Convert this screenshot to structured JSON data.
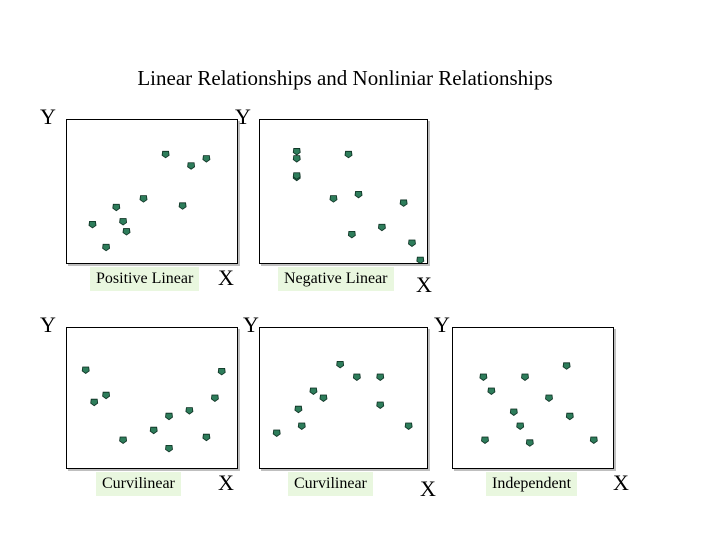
{
  "title": "Linear Relationships and Nonliniar Relationships",
  "point_color": "#2e7d5b",
  "label_bg": "#e9f7df",
  "panels": [
    {
      "label": "Positive Linear",
      "y_axis_label": "Y",
      "x_axis_label": "X",
      "points": [
        [
          0.15,
          0.27
        ],
        [
          0.23,
          0.11
        ],
        [
          0.29,
          0.39
        ],
        [
          0.33,
          0.29
        ],
        [
          0.35,
          0.22
        ],
        [
          0.45,
          0.45
        ],
        [
          0.58,
          0.76
        ],
        [
          0.68,
          0.4
        ],
        [
          0.73,
          0.68
        ],
        [
          0.82,
          0.73
        ]
      ]
    },
    {
      "label": "Negative Linear",
      "y_axis_label": "Y",
      "x_axis_label": "X",
      "points": [
        [
          0.22,
          0.6
        ],
        [
          0.22,
          0.61
        ],
        [
          0.22,
          0.73
        ],
        [
          0.22,
          0.78
        ],
        [
          0.44,
          0.45
        ],
        [
          0.53,
          0.76
        ],
        [
          0.55,
          0.2
        ],
        [
          0.59,
          0.48
        ],
        [
          0.73,
          0.25
        ],
        [
          0.86,
          0.42
        ],
        [
          0.91,
          0.14
        ],
        [
          0.96,
          0.02
        ]
      ]
    },
    {
      "label": "Curvilinear",
      "y_axis_label": "Y",
      "x_axis_label": "X",
      "points": [
        [
          0.11,
          0.7
        ],
        [
          0.16,
          0.47
        ],
        [
          0.23,
          0.52
        ],
        [
          0.33,
          0.2
        ],
        [
          0.51,
          0.27
        ],
        [
          0.6,
          0.14
        ],
        [
          0.6,
          0.37
        ],
        [
          0.72,
          0.41
        ],
        [
          0.82,
          0.22
        ],
        [
          0.87,
          0.5
        ],
        [
          0.91,
          0.69
        ]
      ]
    },
    {
      "label": "Curvilinear",
      "y_axis_label": "Y",
      "x_axis_label": "X",
      "points": [
        [
          0.1,
          0.25
        ],
        [
          0.23,
          0.42
        ],
        [
          0.25,
          0.3
        ],
        [
          0.32,
          0.55
        ],
        [
          0.38,
          0.5
        ],
        [
          0.48,
          0.74
        ],
        [
          0.58,
          0.65
        ],
        [
          0.72,
          0.65
        ],
        [
          0.72,
          0.45
        ],
        [
          0.89,
          0.3
        ]
      ]
    },
    {
      "label": "Independent",
      "y_axis_label": "Y",
      "x_axis_label": "X",
      "points": [
        [
          0.19,
          0.65
        ],
        [
          0.2,
          0.2
        ],
        [
          0.24,
          0.55
        ],
        [
          0.38,
          0.4
        ],
        [
          0.42,
          0.3
        ],
        [
          0.45,
          0.65
        ],
        [
          0.48,
          0.18
        ],
        [
          0.6,
          0.5
        ],
        [
          0.71,
          0.73
        ],
        [
          0.73,
          0.37
        ],
        [
          0.88,
          0.2
        ]
      ]
    }
  ]
}
